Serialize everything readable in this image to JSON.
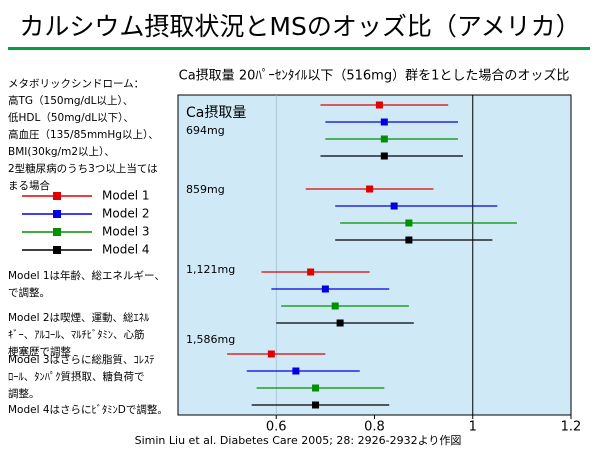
{
  "title": "カルシウム摂取状況とMSのオッズ比（アメリカ）",
  "criteria": [
    "メタボリックシンドローム：",
    "高TG（150mg/dL以上）、",
    "低HDL（50mg/dL以下）、",
    "高血圧（135/85mmHg以上）、",
    "BMI(30kg/m2以上）、",
    "2型糖尿病のうち3つ以上当ては",
    "まる場合"
  ],
  "notes": [
    [
      "Model 1は年齢、総エネルギー、",
      "で調整。"
    ],
    [
      "Model 2は喫煙、運動、総ｴﾈﾙ",
      "ｷﾞｰ、ｱﾙｺｰﾙ、ﾏﾙﾁﾋﾞﾀﾐﾝ、心筋",
      "梗塞歴で調整"
    ],
    [
      "Model 3はさらに総脂質、ｺﾚｽﾃ",
      "ﾛｰﾙ、ﾀﾝﾊﾟｸ質摂取、糖負荷で",
      "調整。"
    ],
    [
      "Model 4はさらにﾋﾞﾀﾐﾝDで調整。"
    ]
  ],
  "chart_data": {
    "type": "forest",
    "title": "Ca摂取量 20ﾊﾟｰｾﾝﾀｲﾙ以下（516mg）群を1とした場合のオッズ比",
    "group_title": "Ca摂取量",
    "categories": [
      "694mg",
      "859mg",
      "1,121mg",
      "1,586mg"
    ],
    "series": [
      {
        "name": "Model 1",
        "color": "#e00000",
        "values": [
          0.81,
          0.79,
          0.67,
          0.59
        ],
        "lower": [
          0.69,
          0.66,
          0.57,
          0.5
        ],
        "upper": [
          0.95,
          0.92,
          0.79,
          0.7
        ]
      },
      {
        "name": "Model 2",
        "color": "#0000e0",
        "values": [
          0.82,
          0.84,
          0.7,
          0.64
        ],
        "lower": [
          0.7,
          0.72,
          0.59,
          0.54
        ],
        "upper": [
          0.97,
          1.05,
          0.83,
          0.77
        ]
      },
      {
        "name": "Model 3",
        "color": "#009000",
        "values": [
          0.82,
          0.87,
          0.72,
          0.68
        ],
        "lower": [
          0.7,
          0.73,
          0.61,
          0.56
        ],
        "upper": [
          0.97,
          1.09,
          0.87,
          0.82
        ]
      },
      {
        "name": "Model 4",
        "color": "#000000",
        "values": [
          0.82,
          0.87,
          0.73,
          0.68
        ],
        "lower": [
          0.69,
          0.72,
          0.6,
          0.55
        ],
        "upper": [
          0.98,
          1.04,
          0.88,
          0.83
        ]
      }
    ],
    "xlim": [
      0.4,
      1.2
    ],
    "xticks": [
      0.6,
      0.8,
      1,
      1.2
    ],
    "reference": 1,
    "source": "Simin Liu et al. Diabetes Care 2005; 28: 2926-2932より作図"
  }
}
